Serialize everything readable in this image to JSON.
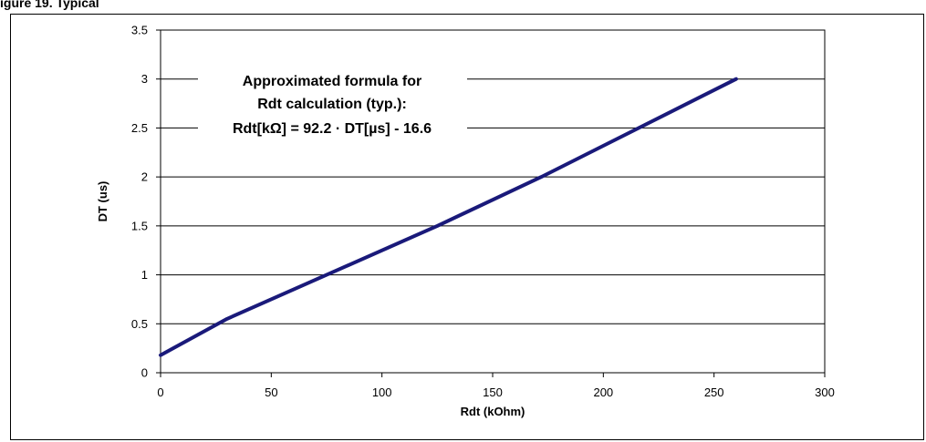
{
  "caption": "igure 19. Typical",
  "chart_data": {
    "type": "line",
    "title": "",
    "xlabel": "Rdt (kOhm)",
    "ylabel": "DT (us)",
    "xlim": [
      0,
      300
    ],
    "ylim": [
      0,
      3.5
    ],
    "xticks": [
      "0",
      "50",
      "100",
      "150",
      "200",
      "250",
      "300"
    ],
    "yticks": [
      "0",
      "0.5",
      "1",
      "1.5",
      "2",
      "2.5",
      "3",
      "3.5"
    ],
    "grid": "horizontal",
    "line_color": "#1a1a7a",
    "series": [
      {
        "x": [
          0,
          30,
          75,
          125,
          172,
          216,
          260
        ],
        "y": [
          0.18,
          0.55,
          1.0,
          1.5,
          2.0,
          2.5,
          3.0
        ]
      }
    ],
    "annotation": [
      "Approximated formula for",
      "Rdt calculation (typ.):",
      "Rdt[kΩ] = 92.2 · DT[µs] - 16.6"
    ]
  }
}
